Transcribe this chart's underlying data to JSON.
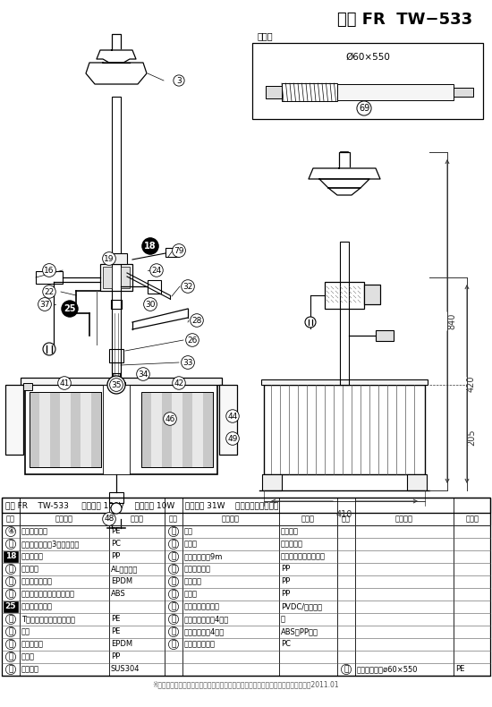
{
  "title": "吉野 FR  TW−533",
  "bg_color": "#ffffff",
  "accessory_label": "付属品",
  "accessory_spec": "Ø60×550",
  "table_header_info": "吉野 FR    TW-533     定格電圧 100V    定格出力 10W    消費電力 31W    タカラ工業株式会社",
  "footer": "※お断りなく材質形状等を変更する場合がございます。　白ヌキ・・・・非売品　　2011.01",
  "dim_840": "840",
  "dim_420": "420",
  "dim_205": "205",
  "dim_410": "410",
  "table_rows": [
    [
      "④",
      "わらぶき屋根",
      "PE",
      "㑤",
      "ベラ",
      "ナイロン",
      "",
      "",
      ""
    ],
    [
      "⑰",
      "コンデンサー（3マイクロ）",
      "PC",
      "㑥",
      "軸受け",
      "ジェラコン",
      "",
      "",
      ""
    ],
    [
      "18",
      "浸水検知器",
      "PP",
      "㑲",
      "電源コード　9m",
      "ビニールキャブタイヤ",
      "",
      "",
      ""
    ],
    [
      "⑳",
      "モーター",
      "AL・鉄・銅",
      "㑶",
      "蓋止めバンド",
      "PP",
      "",
      "",
      ""
    ],
    [
      "⑶",
      "ジョイントゴム",
      "EPDM",
      "㑷",
      "濾過槽蓋",
      "PP",
      "",
      "",
      ""
    ],
    [
      "⑸",
      "補助ベース（ふるさと用）",
      "ABS",
      "㑹",
      "濾過槽",
      "PP",
      "",
      "",
      ""
    ],
    [
      "25",
      "オーバーフロー",
      "",
      "㑺",
      "濾過材（ダブル）",
      "PVDC/ナイロン",
      "",
      "",
      ""
    ],
    [
      "⑺",
      "Tパイプ（水切りゴム付）",
      "PE",
      "㑻",
      "本体支え（ネジ4本）",
      "鉄",
      "",
      "",
      ""
    ],
    [
      "⑼",
      "蛇口",
      "PE",
      "㑼",
      "重り　　（脚4ヶ）",
      "ABS・PP・鉄",
      "",
      "",
      ""
    ],
    [
      "⑾",
      "水切りゴム",
      "EPDM",
      "㑿",
      "ふるさとベース",
      "PC",
      "",
      "",
      ""
    ],
    [
      "⒀",
      "水切り",
      "PP",
      "",
      "",
      "",
      "",
      "",
      ""
    ],
    [
      "⒁",
      "シャフト",
      "SUS304",
      "",
      "",
      "",
      "㑩",
      "サイレンサーø60×550",
      "PE"
    ]
  ]
}
